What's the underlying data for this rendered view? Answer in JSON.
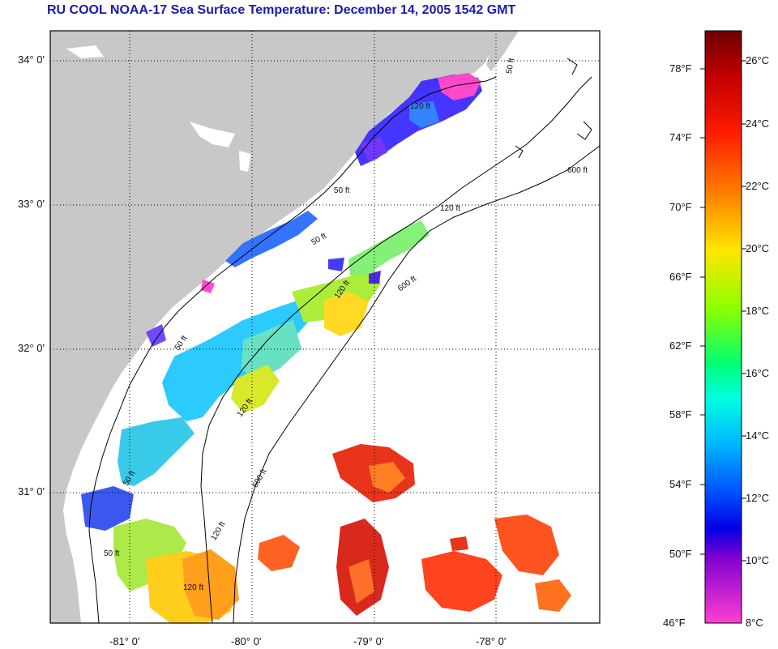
{
  "title": "RU COOL  NOAA-17  Sea Surface Temperature:  December 14, 2005 1542 GMT",
  "axes": {
    "lat_labels": [
      "34° 0'",
      "33° 0'",
      "32° 0'",
      "31° 0'"
    ],
    "lon_labels": [
      "-81° 0'",
      "-80° 0'",
      "-79° 0'",
      "-78° 0'"
    ]
  },
  "contours": {
    "labels": [
      "50 ft",
      "120 ft",
      "600 ft",
      "50 ft",
      "120 ft",
      "600 ft",
      "50 ft",
      "120 ft",
      "600 ft",
      "50 ft",
      "120 ft",
      "50 ft",
      "120 ft",
      "50 ft",
      "120 ft"
    ]
  },
  "colorbar": {
    "fahrenheit": [
      "78°F",
      "74°F",
      "70°F",
      "66°F",
      "62°F",
      "58°F",
      "54°F",
      "50°F",
      "46°F"
    ],
    "celsius": [
      "26°C",
      "24°C",
      "22°C",
      "20°C",
      "18°C",
      "16°C",
      "14°C",
      "12°C",
      "10°C",
      "8°C"
    ]
  },
  "colors": {
    "land": "#c8c8c8",
    "title": "#1a1ab0",
    "frame": "#000000"
  }
}
